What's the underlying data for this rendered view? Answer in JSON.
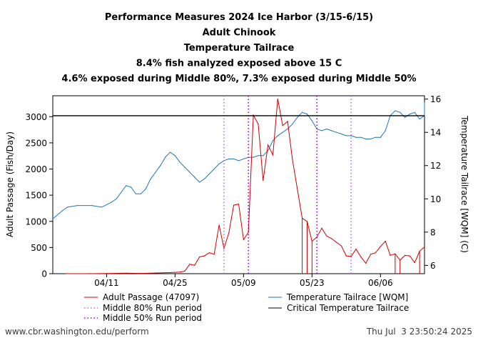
{
  "chart_data": {
    "type": "line",
    "title_lines": [
      "Performance Measures 2024 Ice Harbor (3/15-6/15)",
      "Adult Chinook",
      "Temperature Tailrace",
      "8.4% fish analyzed exposed above 15 C",
      "4.6% exposed during Middle 80%, 7.3% exposed during Middle 50%"
    ],
    "xlabel": "",
    "ylabel_left": "Adult Passage (Fish/Day)",
    "ylabel_right": "Temperature Tailrace [WQM] (C)",
    "ylim_left": [
      0,
      3400
    ],
    "ylim_right": [
      5.5,
      16.2
    ],
    "xlim": [
      "2024-03-31",
      "2024-06-15"
    ],
    "x_ticks": [
      {
        "date": "2024-04-11",
        "label": "04/11"
      },
      {
        "date": "2024-04-25",
        "label": "04/25"
      },
      {
        "date": "2024-05-09",
        "label": "05/09"
      },
      {
        "date": "2024-05-23",
        "label": "05/23"
      },
      {
        "date": "2024-06-06",
        "label": "06/06"
      }
    ],
    "y_ticks_left": [
      "0",
      "500",
      "1000",
      "1500",
      "2000",
      "2500",
      "3000"
    ],
    "y_ticks_right": [
      "6",
      "8",
      "10",
      "12",
      "14",
      "16"
    ],
    "grid": false,
    "critical_temperature": 15,
    "middle_80_dates": [
      "2024-05-05",
      "2024-05-31"
    ],
    "middle_50_dates": [
      "2024-05-10",
      "2024-05-24"
    ],
    "series": [
      {
        "name": "Adult Passage (47097)",
        "axis": "left",
        "color": "#cc0000",
        "points": [
          [
            "2024-04-07",
            0
          ],
          [
            "2024-04-12",
            5
          ],
          [
            "2024-04-15",
            10
          ],
          [
            "2024-04-18",
            5
          ],
          [
            "2024-04-20",
            10
          ],
          [
            "2024-04-24",
            20
          ],
          [
            "2024-04-26",
            30
          ],
          [
            "2024-04-27",
            50
          ],
          [
            "2024-04-28",
            180
          ],
          [
            "2024-04-29",
            160
          ],
          [
            "2024-04-30",
            320
          ],
          [
            "2024-05-01",
            340
          ],
          [
            "2024-05-02",
            400
          ],
          [
            "2024-05-03",
            370
          ],
          [
            "2024-05-04",
            930
          ],
          [
            "2024-05-05",
            480
          ],
          [
            "2024-05-06",
            780
          ],
          [
            "2024-05-07",
            1310
          ],
          [
            "2024-05-08",
            1330
          ],
          [
            "2024-05-09",
            650
          ],
          [
            "2024-05-10",
            790
          ],
          [
            "2024-05-11",
            3030
          ],
          [
            "2024-05-12",
            2860
          ],
          [
            "2024-05-13",
            1780
          ],
          [
            "2024-05-14",
            2460
          ],
          [
            "2024-05-15",
            2270
          ],
          [
            "2024-05-16",
            3340
          ],
          [
            "2024-05-17",
            2830
          ],
          [
            "2024-05-18",
            2910
          ],
          [
            "2024-05-19",
            2180
          ],
          [
            "2024-05-21",
            1060
          ],
          [
            "2024-05-22",
            1000
          ],
          [
            "2024-05-23",
            620
          ],
          [
            "2024-05-24",
            700
          ],
          [
            "2024-05-25",
            870
          ],
          [
            "2024-05-26",
            720
          ],
          [
            "2024-05-27",
            670
          ],
          [
            "2024-05-28",
            600
          ],
          [
            "2024-05-29",
            530
          ],
          [
            "2024-05-30",
            340
          ],
          [
            "2024-05-31",
            330
          ],
          [
            "2024-06-01",
            470
          ],
          [
            "2024-06-02",
            320
          ],
          [
            "2024-06-03",
            200
          ],
          [
            "2024-06-04",
            370
          ],
          [
            "2024-06-05",
            400
          ],
          [
            "2024-06-06",
            520
          ],
          [
            "2024-06-07",
            620
          ],
          [
            "2024-06-08",
            350
          ],
          [
            "2024-06-09",
            380
          ],
          [
            "2024-06-10",
            260
          ],
          [
            "2024-06-11",
            350
          ],
          [
            "2024-06-12",
            340
          ],
          [
            "2024-06-13",
            210
          ],
          [
            "2024-06-14",
            430
          ],
          [
            "2024-06-15",
            510
          ]
        ],
        "drops_to_zero": [
          "2024-05-21",
          "2024-05-22",
          "2024-05-23",
          "2024-06-09",
          "2024-06-10",
          "2024-06-14"
        ]
      },
      {
        "name": "Temperature Tailrace [WQM]",
        "axis": "right",
        "color": "#1f77b4",
        "points": [
          [
            "2024-03-31",
            8.8
          ],
          [
            "2024-04-02",
            9.3
          ],
          [
            "2024-04-03",
            9.5
          ],
          [
            "2024-04-05",
            9.6
          ],
          [
            "2024-04-08",
            9.6
          ],
          [
            "2024-04-10",
            9.5
          ],
          [
            "2024-04-12",
            9.8
          ],
          [
            "2024-04-13",
            10.0
          ],
          [
            "2024-04-15",
            10.8
          ],
          [
            "2024-04-16",
            10.7
          ],
          [
            "2024-04-17",
            10.3
          ],
          [
            "2024-04-18",
            10.3
          ],
          [
            "2024-04-19",
            10.6
          ],
          [
            "2024-04-20",
            11.2
          ],
          [
            "2024-04-21",
            11.6
          ],
          [
            "2024-04-22",
            12.0
          ],
          [
            "2024-04-23",
            12.5
          ],
          [
            "2024-04-24",
            12.8
          ],
          [
            "2024-04-25",
            12.6
          ],
          [
            "2024-04-26",
            12.2
          ],
          [
            "2024-04-27",
            11.9
          ],
          [
            "2024-04-28",
            11.6
          ],
          [
            "2024-04-29",
            11.3
          ],
          [
            "2024-04-30",
            11.0
          ],
          [
            "2024-05-01",
            11.2
          ],
          [
            "2024-05-02",
            11.5
          ],
          [
            "2024-05-03",
            11.8
          ],
          [
            "2024-05-04",
            12.1
          ],
          [
            "2024-05-05",
            12.3
          ],
          [
            "2024-05-06",
            12.4
          ],
          [
            "2024-05-07",
            12.4
          ],
          [
            "2024-05-08",
            12.3
          ],
          [
            "2024-05-10",
            12.5
          ],
          [
            "2024-05-11",
            12.5
          ],
          [
            "2024-05-12",
            12.6
          ],
          [
            "2024-05-13",
            12.6
          ],
          [
            "2024-05-14",
            12.9
          ],
          [
            "2024-05-15",
            13.5
          ],
          [
            "2024-05-16",
            13.8
          ],
          [
            "2024-05-17",
            14.0
          ],
          [
            "2024-05-18",
            14.2
          ],
          [
            "2024-05-19",
            14.5
          ],
          [
            "2024-05-20",
            14.9
          ],
          [
            "2024-05-21",
            15.2
          ],
          [
            "2024-05-22",
            15.1
          ],
          [
            "2024-05-23",
            14.7
          ],
          [
            "2024-05-24",
            14.2
          ],
          [
            "2024-05-25",
            14.1
          ],
          [
            "2024-05-26",
            14.2
          ],
          [
            "2024-05-27",
            14.1
          ],
          [
            "2024-05-28",
            14.0
          ],
          [
            "2024-05-29",
            13.9
          ],
          [
            "2024-05-30",
            13.8
          ],
          [
            "2024-05-31",
            13.8
          ],
          [
            "2024-06-01",
            13.7
          ],
          [
            "2024-06-02",
            13.7
          ],
          [
            "2024-06-03",
            13.6
          ],
          [
            "2024-06-04",
            13.6
          ],
          [
            "2024-06-05",
            13.7
          ],
          [
            "2024-06-06",
            13.7
          ],
          [
            "2024-06-07",
            14.1
          ],
          [
            "2024-06-08",
            15.0
          ],
          [
            "2024-06-09",
            15.3
          ],
          [
            "2024-06-10",
            15.2
          ],
          [
            "2024-06-11",
            14.9
          ],
          [
            "2024-06-12",
            15.1
          ],
          [
            "2024-06-13",
            15.2
          ],
          [
            "2024-06-14",
            14.8
          ],
          [
            "2024-06-15",
            15.0
          ],
          [
            "2024-06-16",
            15.8
          ]
        ]
      }
    ],
    "legend": [
      {
        "label": "Adult Passage (47097)",
        "style": "solid",
        "color": "#cc0000"
      },
      {
        "label": "Temperature Tailrace [WQM]",
        "style": "solid",
        "color": "#1f77b4"
      },
      {
        "label": "Middle 80% Run period",
        "style": "dotted",
        "color": "#b469d9"
      },
      {
        "label": "Critical Temperature Tailrace",
        "style": "solid",
        "color": "#000000"
      },
      {
        "label": "Middle 50% Run period",
        "style": "dotted",
        "color": "#8a00c9"
      }
    ],
    "legend_placement": "bottom"
  },
  "footer": {
    "left": "www.cbr.washington.edu/perform",
    "right": "Thu Jul  3 23:50:24 2025"
  }
}
